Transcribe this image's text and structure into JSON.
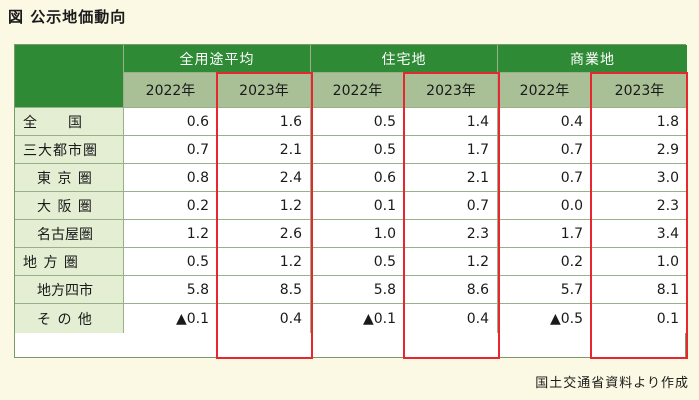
{
  "title": "図 公示地価動向",
  "source": "国土交通省資料より作成",
  "groups": [
    "全用途平均",
    "住宅地",
    "商業地"
  ],
  "years": [
    "2022年",
    "2023年"
  ],
  "rows": [
    {
      "label": "全　　国",
      "values": [
        "0.6",
        "1.6",
        "0.5",
        "1.4",
        "0.4",
        "1.8"
      ]
    },
    {
      "label": "三大都市圏",
      "values": [
        "0.7",
        "2.1",
        "0.5",
        "1.7",
        "0.7",
        "2.9"
      ]
    },
    {
      "label": "東 京 圏",
      "values": [
        "0.8",
        "2.4",
        "0.6",
        "2.1",
        "0.7",
        "3.0"
      ]
    },
    {
      "label": "大 阪 圏",
      "values": [
        "0.2",
        "1.2",
        "0.1",
        "0.7",
        "0.0",
        "2.3"
      ]
    },
    {
      "label": "名古屋圏",
      "values": [
        "1.2",
        "2.6",
        "1.0",
        "2.3",
        "1.7",
        "3.4"
      ]
    },
    {
      "label": "地 方 圏",
      "values": [
        "0.5",
        "1.2",
        "0.5",
        "1.2",
        "0.2",
        "1.0"
      ]
    },
    {
      "label": "地方四市",
      "values": [
        "5.8",
        "8.5",
        "5.8",
        "8.6",
        "5.7",
        "8.1"
      ]
    },
    {
      "label": "そ の 他",
      "values": [
        "▲0.1",
        "0.4",
        "▲0.1",
        "0.4",
        "▲0.5",
        "0.1"
      ]
    }
  ],
  "colors": {
    "header_green": "#2e8a35",
    "year_band": "#a9bf96",
    "row_header": "#e3eed3",
    "highlight": "#e8262f"
  }
}
